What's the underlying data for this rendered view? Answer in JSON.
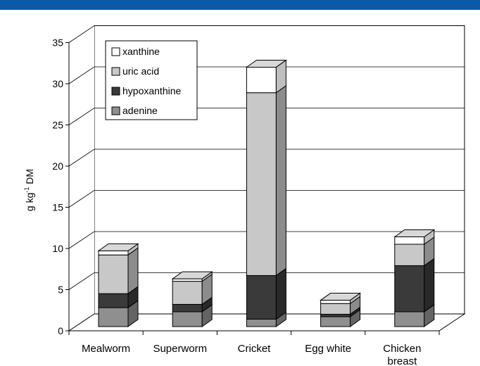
{
  "chart_data": {
    "type": "bar",
    "stacked": true,
    "style": "3d",
    "categories": [
      "Mealworm",
      "Superworm",
      "Cricket",
      "Egg white",
      "Chicken breast"
    ],
    "category_lines": [
      [
        "Mealworm"
      ],
      [
        "Superworm"
      ],
      [
        "Cricket"
      ],
      [
        "Egg white"
      ],
      [
        "Chicken",
        "breast"
      ]
    ],
    "series": [
      {
        "name": "adenine",
        "values": [
          2.3,
          1.8,
          0.9,
          1.2,
          1.8
        ],
        "color": "#8f8f8f"
      },
      {
        "name": "hypoxanthine",
        "values": [
          1.7,
          0.9,
          5.3,
          0.3,
          5.6
        ],
        "color": "#3a3a3a"
      },
      {
        "name": "uric acid",
        "values": [
          4.7,
          2.8,
          22.2,
          1.3,
          2.6
        ],
        "color": "#c8c8c8"
      },
      {
        "name": "xanthine",
        "values": [
          0.5,
          0.3,
          3.1,
          0.4,
          0.9
        ],
        "color": "#ffffff"
      }
    ],
    "legend_order": [
      "xanthine",
      "uric acid",
      "hypoxanthine",
      "adenine"
    ],
    "ylabel_parts": [
      "g kg",
      "-1",
      " DM"
    ],
    "ylim": [
      0,
      35
    ],
    "yticks": [
      "0",
      "5",
      "10",
      "15",
      "20",
      "25",
      "30",
      "35"
    ],
    "grid": true,
    "legend_position": "top-left"
  },
  "colors": {
    "header_bar": "#0b5aa8"
  }
}
